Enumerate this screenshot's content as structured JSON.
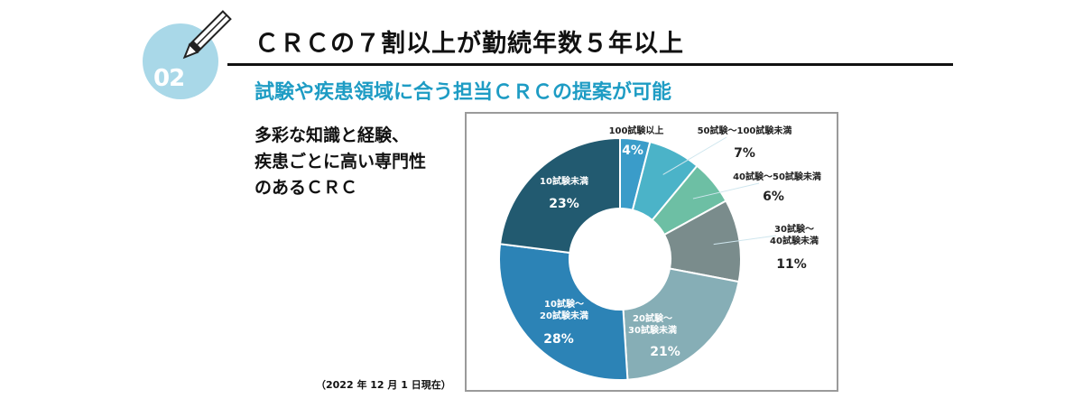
{
  "badge": {
    "number": "02"
  },
  "header": {
    "title": "ＣＲＣの７割以上が勤続年数５年以上",
    "subtitle": "試験や疾患領域に合う担当ＣＲＣの提案が可能"
  },
  "description": {
    "lines": [
      "多彩な知識と経験、",
      "疾患ごとに高い専門性",
      "のあるＣＲＣ"
    ]
  },
  "note": "（2022 年 12 月 1 日現在）",
  "colors": {
    "badge": "#a9d8e8",
    "subtitle": "#1e9cc4"
  },
  "chart_data": {
    "type": "pie",
    "donut": true,
    "order": "clockwise-from-top",
    "slices": [
      {
        "name": "100試験以上",
        "lines": [
          "100試験以上"
        ],
        "value": 4,
        "pct": "4%",
        "color": "#3a9cc9"
      },
      {
        "name": "50試験～100試験未満",
        "lines": [
          "50試験～100試験未満"
        ],
        "value": 7,
        "pct": "7%",
        "color": "#4bb3c8"
      },
      {
        "name": "40試験～50試験未満",
        "lines": [
          "40試験～50試験未満"
        ],
        "value": 6,
        "pct": "6%",
        "color": "#6dbfa4"
      },
      {
        "name": "30試験～40試験未満",
        "lines": [
          "30試験～",
          "40試験未満"
        ],
        "value": 11,
        "pct": "11%",
        "color": "#7a8c8c"
      },
      {
        "name": "20試験～30試験未満",
        "lines": [
          "20試験～",
          "30試験未満"
        ],
        "value": 21,
        "pct": "21%",
        "color": "#86aeb6"
      },
      {
        "name": "10試験～20試験未満",
        "lines": [
          "10試験～",
          "20試験未満"
        ],
        "value": 28,
        "pct": "28%",
        "color": "#2c83b6"
      },
      {
        "name": "10試験未満",
        "lines": [
          "10試験未満"
        ],
        "value": 23,
        "pct": "23%",
        "color": "#225a70"
      }
    ]
  }
}
